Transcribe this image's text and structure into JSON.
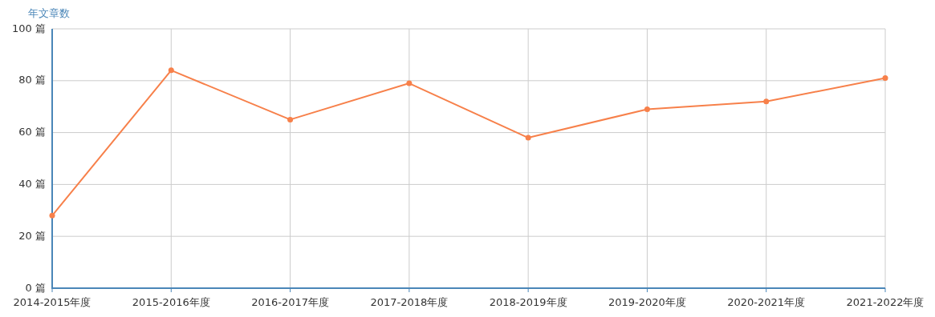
{
  "chart_data": {
    "type": "line",
    "ylabel": "年文章数",
    "categories": [
      "2014-2015年度",
      "2015-2016年度",
      "2016-2017年度",
      "2017-2018年度",
      "2018-2019年度",
      "2019-2020年度",
      "2020-2021年度",
      "2021-2022年度"
    ],
    "series": [
      {
        "color": "#f7804a",
        "values": [
          28,
          84,
          65,
          79,
          58,
          69,
          72,
          81
        ]
      }
    ],
    "ylim": [
      0,
      100
    ],
    "yticks": [
      {
        "value": 0,
        "label": "0 篇"
      },
      {
        "value": 20,
        "label": "20 篇"
      },
      {
        "value": 40,
        "label": "40 篇"
      },
      {
        "value": 60,
        "label": "60 篇"
      },
      {
        "value": 80,
        "label": "80 篇"
      },
      {
        "value": 100,
        "label": "100 篇"
      }
    ],
    "grid": true,
    "marker": "circle",
    "line_style": "solid"
  }
}
